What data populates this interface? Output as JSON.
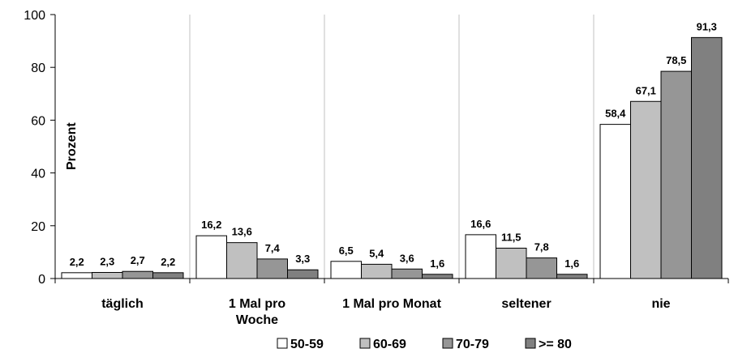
{
  "chart_data": {
    "type": "bar",
    "ylabel": "Prozent",
    "ylim": [
      0,
      100
    ],
    "yticks": [
      0,
      20,
      40,
      60,
      80,
      100
    ],
    "grid": "vertical separators between categories",
    "legend_position": "bottom",
    "categories": [
      [
        "täglich"
      ],
      [
        "1 Mal pro",
        "Woche"
      ],
      [
        "1 Mal pro Monat"
      ],
      [
        "seltener"
      ],
      [
        "nie"
      ]
    ],
    "series": [
      {
        "name": "50-59",
        "color": "#ffffff",
        "values": [
          2.2,
          16.2,
          6.5,
          16.6,
          58.4
        ],
        "labels": [
          "2,2",
          "16,2",
          "6,5",
          "16,6",
          "58,4"
        ]
      },
      {
        "name": "60-69",
        "color": "#c0c0c0",
        "values": [
          2.3,
          13.6,
          5.4,
          11.5,
          67.1
        ],
        "labels": [
          "2,3",
          "13,6",
          "5,4",
          "11,5",
          "67,1"
        ]
      },
      {
        "name": "70-79",
        "color": "#969696",
        "values": [
          2.7,
          7.4,
          3.6,
          7.8,
          78.5
        ],
        "labels": [
          "2,7",
          "7,4",
          "3,6",
          "7,8",
          "78,5"
        ]
      },
      {
        "name": ">= 80",
        "color": "#808080",
        "values": [
          2.2,
          3.3,
          1.6,
          1.6,
          91.3
        ],
        "labels": [
          "2,2",
          "3,3",
          "1,6",
          "1,6",
          "91,3"
        ]
      }
    ]
  }
}
